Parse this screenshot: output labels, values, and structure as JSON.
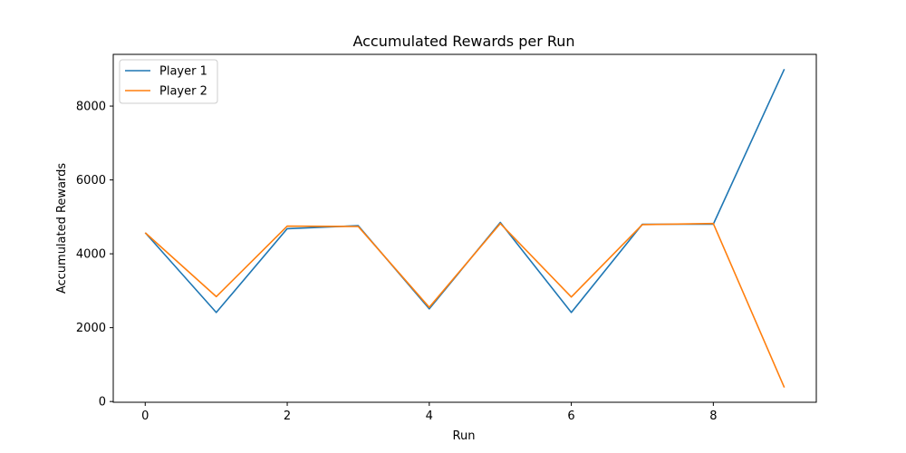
{
  "chart_data": {
    "type": "line",
    "title": "Accumulated Rewards per Run",
    "xlabel": "Run",
    "ylabel": "Accumulated Rewards",
    "x": [
      0,
      1,
      2,
      3,
      4,
      5,
      6,
      7,
      8,
      9
    ],
    "xlim": [
      -0.45,
      9.45
    ],
    "ylim": [
      -20,
      9400
    ],
    "xticks": [
      0,
      2,
      4,
      6,
      8
    ],
    "yticks": [
      0,
      2000,
      4000,
      6000,
      8000
    ],
    "grid": false,
    "legend_position": "top-left",
    "series": [
      {
        "name": "Player 1",
        "color": "#1f77b4",
        "values": [
          4570,
          2410,
          4680,
          4760,
          2510,
          4850,
          2410,
          4800,
          4800,
          9000
        ]
      },
      {
        "name": "Player 2",
        "color": "#ff7f0e",
        "values": [
          4570,
          2840,
          4750,
          4740,
          2550,
          4820,
          2830,
          4790,
          4820,
          380
        ]
      }
    ]
  }
}
